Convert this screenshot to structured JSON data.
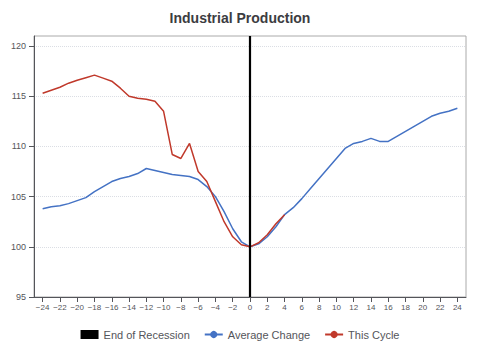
{
  "chart_data": {
    "type": "line",
    "title": "Industrial Production",
    "xlim": [
      -25,
      25
    ],
    "xticks": [
      {
        "value": -24,
        "label": "−24"
      },
      {
        "value": -22,
        "label": "−22"
      },
      {
        "value": -20,
        "label": "−20"
      },
      {
        "value": -18,
        "label": "−18"
      },
      {
        "value": -16,
        "label": "−16"
      },
      {
        "value": -14,
        "label": "−14"
      },
      {
        "value": -12,
        "label": "−12"
      },
      {
        "value": -10,
        "label": "−10"
      },
      {
        "value": -8,
        "label": "−8"
      },
      {
        "value": -6,
        "label": "−6"
      },
      {
        "value": -4,
        "label": "−4"
      },
      {
        "value": -2,
        "label": "−2"
      },
      0,
      2,
      4,
      6,
      8,
      10,
      12,
      14,
      16,
      18,
      20,
      22,
      24
    ],
    "ylim": [
      95,
      121
    ],
    "yticks": [
      95,
      100,
      105,
      110,
      115,
      120
    ],
    "grid": "y",
    "legend": "bottom",
    "vline": {
      "name": "End of Recession",
      "value": 0,
      "color": "#000000"
    },
    "series": [
      {
        "name": "Average Change",
        "color": "#4472C4",
        "x": [
          -24,
          -23,
          -22,
          -21,
          -20,
          -19,
          -18,
          -17,
          -16,
          -15,
          -14,
          -13,
          -12,
          -11,
          -10,
          -9,
          -8,
          -7,
          -6,
          -5,
          -4,
          -3,
          -2,
          -1,
          0,
          1,
          2,
          3,
          4,
          5,
          6,
          7,
          8,
          9,
          10,
          11,
          12,
          13,
          14,
          15,
          16,
          17,
          18,
          19,
          20,
          21,
          22,
          23,
          24
        ],
        "values": [
          103.8,
          104.0,
          104.1,
          104.3,
          104.6,
          104.9,
          105.5,
          106.0,
          106.5,
          106.8,
          107.0,
          107.3,
          107.8,
          107.6,
          107.4,
          107.2,
          107.1,
          107.0,
          106.7,
          106.0,
          105.0,
          103.5,
          101.8,
          100.5,
          100.0,
          100.3,
          101.0,
          102.0,
          103.2,
          103.9,
          104.8,
          105.8,
          106.8,
          107.8,
          108.8,
          109.8,
          110.3,
          110.5,
          110.8,
          110.5,
          110.5,
          111.0,
          111.5,
          112.0,
          112.5,
          113.0,
          113.3,
          113.5,
          113.8
        ]
      },
      {
        "name": "This Cycle",
        "color": "#C0392B",
        "x": [
          -24,
          -23,
          -22,
          -21,
          -20,
          -19,
          -18,
          -17,
          -16,
          -15,
          -14,
          -13,
          -12,
          -11,
          -10,
          -9,
          -8,
          -7,
          -6,
          -5,
          -4,
          -3,
          -2,
          -1,
          0,
          1,
          2,
          3,
          4
        ],
        "values": [
          115.3,
          115.6,
          115.9,
          116.3,
          116.6,
          116.85,
          117.1,
          116.8,
          116.5,
          115.8,
          115.0,
          114.8,
          114.7,
          114.5,
          113.5,
          109.2,
          108.8,
          110.3,
          107.5,
          106.5,
          104.5,
          102.5,
          101.0,
          100.2,
          100.0,
          100.4,
          101.2,
          102.3,
          103.2
        ]
      }
    ]
  }
}
